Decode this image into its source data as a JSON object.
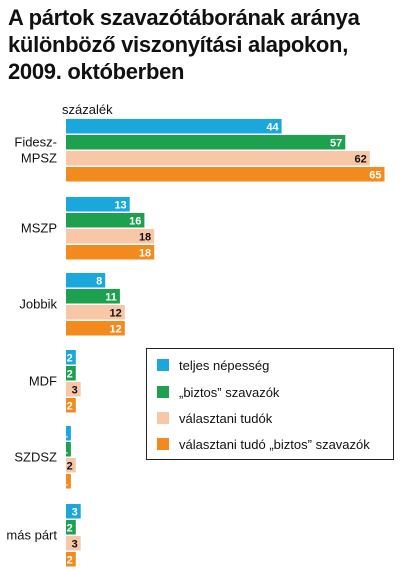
{
  "chart_data": {
    "type": "bar",
    "orientation": "horizontal",
    "title": "A pártok szavazótáborának aránya különböző viszonyítási alapokon, 2009. októberben",
    "unit_label": "százalék",
    "categories": [
      "Fidesz-\nMPSZ",
      "MSZP",
      "Jobbik",
      "MDF",
      "SZDSZ",
      "más párt"
    ],
    "series": [
      {
        "name": "teljes népesség",
        "color": "#1aa7dc",
        "values": [
          44,
          13,
          8,
          2,
          1,
          3
        ]
      },
      {
        "name": "„biztos” szavazók",
        "color": "#1ea14f",
        "values": [
          57,
          16,
          11,
          2,
          1,
          2
        ]
      },
      {
        "name": "választani tudók",
        "color": "#f7c7a8",
        "values": [
          62,
          18,
          12,
          3,
          2,
          3
        ]
      },
      {
        "name": "választani tudó „biztos” szavazók",
        "color": "#f28a1d",
        "values": [
          65,
          18,
          12,
          2,
          1,
          2
        ]
      }
    ],
    "value_label_colors": [
      "#ffffff",
      "#ffffff",
      "#111111",
      "#ffffff"
    ],
    "legend_position": "right, below MDF"
  }
}
